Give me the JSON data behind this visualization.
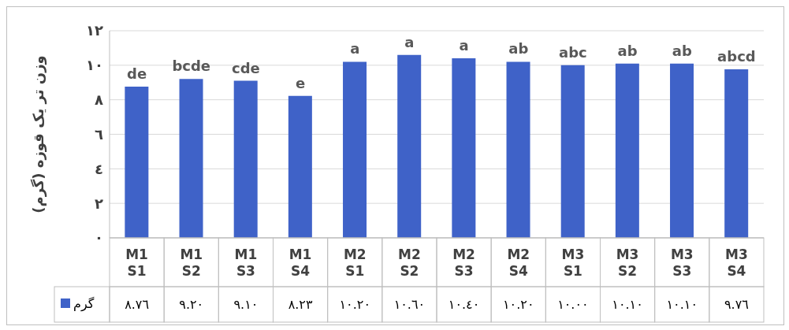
{
  "chart_data": {
    "type": "bar",
    "ylabel": "وزن تر یک قوزه (گرم)",
    "categories": [
      "M1 S1",
      "M1 S2",
      "M1 S3",
      "M1 S4",
      "M2 S1",
      "M2 S2",
      "M2 S3",
      "M2 S4",
      "M3 S1",
      "M3 S2",
      "M3 S3",
      "M3 S4"
    ],
    "series": [
      {
        "name": "گرم",
        "color": "#3f62c8",
        "values": [
          8.76,
          9.2,
          9.1,
          8.23,
          10.2,
          10.6,
          10.4,
          10.2,
          10.0,
          10.1,
          10.1,
          9.76
        ],
        "value_labels": [
          "٨.٧٦",
          "٩.٢٠",
          "٩.١٠",
          "٨.٢٣",
          "١٠.٢٠",
          "١٠.٦٠",
          "١٠.٤٠",
          "١٠.٢٠",
          "١٠.٠٠",
          "١٠.١٠",
          "١٠.١٠",
          "٩.٧٦"
        ]
      }
    ],
    "ylim": [
      0,
      12
    ],
    "yticks": [
      {
        "value": 0,
        "label": "٠"
      },
      {
        "value": 2,
        "label": "٢"
      },
      {
        "value": 4,
        "label": "٤"
      },
      {
        "value": 6,
        "label": "٦"
      },
      {
        "value": 8,
        "label": "٨"
      },
      {
        "value": 10,
        "label": "١٠"
      },
      {
        "value": 12,
        "label": "١٢"
      }
    ],
    "grid": "y",
    "legend": "bottom",
    "annotations": [
      {
        "text": "de",
        "x": "M1 S1",
        "y": 8.76
      },
      {
        "text": "bcde",
        "x": "M1 S2",
        "y": 9.2
      },
      {
        "text": "cde",
        "x": "M1 S3",
        "y": 9.1
      },
      {
        "text": "e",
        "x": "M1 S4",
        "y": 8.23
      },
      {
        "text": "a",
        "x": "M2 S1",
        "y": 10.2
      },
      {
        "text": "a",
        "x": "M2 S2",
        "y": 10.6
      },
      {
        "text": "a",
        "x": "M2 S3",
        "y": 10.4
      },
      {
        "text": "ab",
        "x": "M2 S4",
        "y": 10.2
      },
      {
        "text": "abc",
        "x": "M3 S1",
        "y": 10
      },
      {
        "text": "ab",
        "x": "M3 S2",
        "y": 10.1
      },
      {
        "text": "ab",
        "x": "M3 S3",
        "y": 10.1
      },
      {
        "text": "abcd",
        "x": "M3 S4",
        "y": 9.76
      }
    ]
  }
}
